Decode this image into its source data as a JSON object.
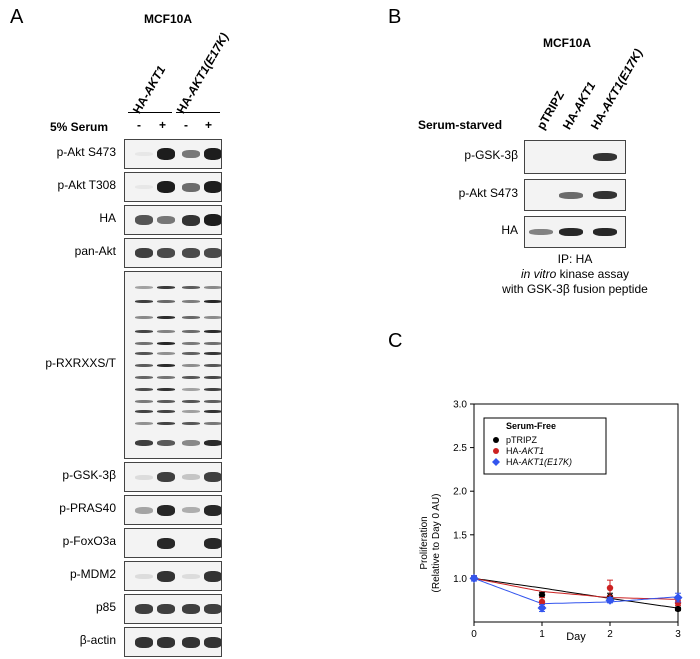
{
  "panel_a": {
    "letter": "A",
    "cell_line": "MCF10A",
    "lane_groups": [
      {
        "prefix": "HA-",
        "gene": "AKT1",
        "suffix": ""
      },
      {
        "prefix": "HA-",
        "gene": "AKT1(E17K)",
        "suffix": ""
      }
    ],
    "condition_label": "5% Serum",
    "condition_values": [
      "-",
      "+",
      "-",
      "+"
    ],
    "blots": [
      {
        "label": "p-Akt S473",
        "intensity": [
          0.05,
          0.95,
          0.55,
          0.95
        ]
      },
      {
        "label": "p-Akt T308",
        "intensity": [
          0.05,
          0.95,
          0.6,
          0.95
        ]
      },
      {
        "label": "HA",
        "intensity": [
          0.7,
          0.55,
          0.85,
          0.95
        ]
      },
      {
        "label": "pan-Akt",
        "intensity": [
          0.8,
          0.75,
          0.75,
          0.75
        ]
      },
      {
        "label": "p-RXRXXS/T",
        "intensity": [
          0.8,
          0.9,
          0.7,
          0.9
        ]
      },
      {
        "label": "p-GSK-3β",
        "intensity": [
          0.1,
          0.8,
          0.2,
          0.8
        ]
      },
      {
        "label": "p-PRAS40",
        "intensity": [
          0.35,
          0.9,
          0.3,
          0.9
        ]
      },
      {
        "label": "p-FoxO3a",
        "intensity": [
          0.0,
          0.9,
          0.0,
          0.9
        ]
      },
      {
        "label": "p-MDM2",
        "intensity": [
          0.1,
          0.85,
          0.1,
          0.85
        ]
      },
      {
        "label": "p85",
        "intensity": [
          0.8,
          0.8,
          0.8,
          0.8
        ]
      },
      {
        "label": "β-actin",
        "intensity": [
          0.85,
          0.85,
          0.85,
          0.85
        ]
      }
    ]
  },
  "panel_b": {
    "letter": "B",
    "cell_line": "MCF10A",
    "condition_label": "Serum-starved",
    "lanes": [
      {
        "prefix": "",
        "gene": "pTRIPZ",
        "suffix": ""
      },
      {
        "prefix": "HA-",
        "gene": "AKT1",
        "suffix": ""
      },
      {
        "prefix": "HA-",
        "gene": "AKT1(E17K)",
        "suffix": ""
      }
    ],
    "blots": [
      {
        "label": "p-GSK-3β",
        "intensity": [
          0.0,
          0.0,
          0.85
        ]
      },
      {
        "label": "p-Akt S473",
        "intensity": [
          0.0,
          0.6,
          0.85
        ]
      },
      {
        "label": "HA",
        "intensity": [
          0.5,
          0.9,
          0.9
        ]
      }
    ],
    "caption_line1": "IP: HA",
    "caption_line2_italic": "in vitro",
    "caption_line2_rest": " kinase assay",
    "caption_line3": "with GSK-3β fusion peptide"
  },
  "panel_c": {
    "letter": "C",
    "chart_data": {
      "type": "scatter",
      "xlabel": "Day",
      "ylabel_line1": "Proliferation",
      "ylabel_line2": "(Relative to Day 0 AU)",
      "xlim": [
        0,
        3
      ],
      "ylim": [
        0.5,
        3.0
      ],
      "xticks": [
        "0",
        "1",
        "2",
        "3"
      ],
      "yticks": [
        "1.0",
        "1.5",
        "2.0",
        "2.5",
        "3.0"
      ],
      "x_tick_values": [
        0,
        1,
        2,
        3
      ],
      "y_tick_values": [
        1.0,
        1.5,
        2.0,
        2.5,
        3.0
      ],
      "legend_title": "Serum-Free",
      "legend_position": "top-left",
      "series": [
        {
          "name_prefix": "pTRIPZ",
          "name_italic": "",
          "name_suffix": "",
          "color": "#000000",
          "marker": "circle",
          "x": [
            0,
            1,
            2,
            3
          ],
          "y": [
            1.0,
            0.81,
            0.79,
            0.65
          ],
          "err": [
            0.03,
            0.03,
            0.04,
            0.02
          ],
          "fit": [
            1.0,
            0.89,
            0.77,
            0.66
          ]
        },
        {
          "name_prefix": "HA-",
          "name_italic": "AKT1",
          "name_suffix": "",
          "color": "#cc2222",
          "marker": "circle",
          "x": [
            0,
            1,
            2,
            3
          ],
          "y": [
            1.0,
            0.73,
            0.89,
            0.72
          ],
          "err": [
            0.03,
            0.05,
            0.09,
            0.03
          ],
          "fit": [
            1.0,
            0.85,
            0.78,
            0.76
          ]
        },
        {
          "name_prefix": "HA-",
          "name_italic": "AKT1(E17K)",
          "name_suffix": "",
          "color": "#3355ee",
          "marker": "diamond",
          "x": [
            0,
            1,
            2,
            3
          ],
          "y": [
            1.0,
            0.66,
            0.75,
            0.78
          ],
          "err": [
            0.03,
            0.04,
            0.03,
            0.05
          ],
          "fit": [
            1.0,
            0.71,
            0.73,
            0.79
          ]
        }
      ]
    }
  }
}
